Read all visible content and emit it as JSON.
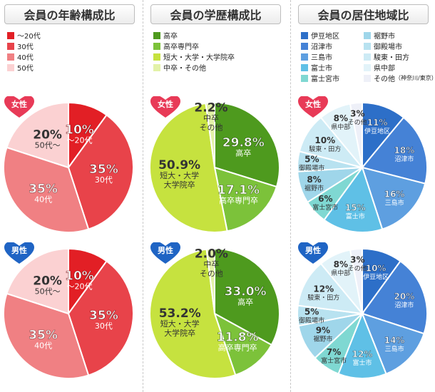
{
  "chart_data": [
    {
      "type": "pie",
      "title": "会員の年齢構成比",
      "legend": [
        {
          "label": "～20代",
          "color": "#e21f25"
        },
        {
          "label": "30代",
          "color": "#e8434a"
        },
        {
          "label": "40代",
          "color": "#f08083"
        },
        {
          "label": "50代",
          "color": "#fbd1d2"
        }
      ],
      "groups": [
        {
          "heart_label": "女性",
          "heart_color": "#e83a57",
          "slices": [
            {
              "value": 10,
              "label_pct": "10%",
              "label": "～20代",
              "color": "#e21f25"
            },
            {
              "value": 35,
              "label_pct": "35%",
              "label": "30代",
              "color": "#e8434a"
            },
            {
              "value": 35,
              "label_pct": "35%",
              "label": "40代",
              "color": "#f08083"
            },
            {
              "value": 20,
              "label_pct": "20%",
              "label": "50代～",
              "color": "#fbd1d2"
            }
          ]
        },
        {
          "heart_label": "男性",
          "heart_color": "#1f64c4",
          "slices": [
            {
              "value": 10,
              "label_pct": "10%",
              "label": "～20代",
              "color": "#e21f25"
            },
            {
              "value": 35,
              "label_pct": "35%",
              "label": "30代",
              "color": "#e8434a"
            },
            {
              "value": 35,
              "label_pct": "35%",
              "label": "40代",
              "color": "#f08083"
            },
            {
              "value": 20,
              "label_pct": "20%",
              "label": "50代～",
              "color": "#fbd1d2"
            }
          ]
        }
      ]
    },
    {
      "type": "pie",
      "title": "会員の学歴構成比",
      "legend": [
        {
          "label": "高卒",
          "color": "#4e9a1e"
        },
        {
          "label": "高卒専門卒",
          "color": "#7cc23a"
        },
        {
          "label": "短大・大学・大学院卒",
          "color": "#c6e23f"
        },
        {
          "label": "中卒・その他",
          "color": "#e3f2a8"
        }
      ],
      "groups": [
        {
          "heart_label": "女性",
          "heart_color": "#e83a57",
          "slices": [
            {
              "value": 29.8,
              "label_pct": "29.8%",
              "label": "高卒",
              "color": "#4e9a1e"
            },
            {
              "value": 17.1,
              "label_pct": "17.1%",
              "label": "高卒専門卒",
              "color": "#7cc23a"
            },
            {
              "value": 50.9,
              "label_pct": "50.9%",
              "label": "短大・大学|大学院卒",
              "color": "#c6e23f"
            },
            {
              "value": 2.2,
              "label_pct": "2.2%",
              "label": "中卒|その他",
              "color": "#e3f2a8"
            }
          ]
        },
        {
          "heart_label": "男性",
          "heart_color": "#1f64c4",
          "slices": [
            {
              "value": 33.0,
              "label_pct": "33.0%",
              "label": "高卒",
              "color": "#4e9a1e"
            },
            {
              "value": 11.8,
              "label_pct": "11.8%",
              "label": "高卒専門卒",
              "color": "#7cc23a"
            },
            {
              "value": 53.2,
              "label_pct": "53.2%",
              "label": "短大・大学|大学院卒",
              "color": "#c6e23f"
            },
            {
              "value": 2.0,
              "label_pct": "2.0%",
              "label": "中卒|その他",
              "color": "#e3f2a8"
            }
          ]
        }
      ]
    },
    {
      "type": "pie",
      "title": "会員の居住地域比",
      "legend": [
        {
          "label": "伊豆地区",
          "color": "#2d6fc8"
        },
        {
          "label": "裾野市",
          "color": "#9fd6ea"
        },
        {
          "label": "沼津市",
          "color": "#4582d6"
        },
        {
          "label": "御殿場市",
          "color": "#b8e2f0"
        },
        {
          "label": "三島市",
          "color": "#5e9fe0"
        },
        {
          "label": "駿東・田方",
          "color": "#cdebf5"
        },
        {
          "label": "富士市",
          "color": "#5fc0e6"
        },
        {
          "label": "県中部",
          "color": "#e2f3f9"
        },
        {
          "label": "富士宮市",
          "color": "#7fd8d2"
        },
        {
          "label": "その他",
          "note": "（神奈川/東京）",
          "color": "#eef0f8"
        }
      ],
      "groups": [
        {
          "heart_label": "女性",
          "heart_color": "#e83a57",
          "slices": [
            {
              "value": 11,
              "label_pct": "11%",
              "label": "伊豆地区",
              "color": "#2d6fc8"
            },
            {
              "value": 18,
              "label_pct": "18%",
              "label": "沼津市",
              "color": "#4582d6"
            },
            {
              "value": 16,
              "label_pct": "16%",
              "label": "三島市",
              "color": "#5e9fe0"
            },
            {
              "value": 15,
              "label_pct": "15%",
              "label": "富士市",
              "color": "#5fc0e6"
            },
            {
              "value": 6,
              "label_pct": "6%",
              "label": "富士宮市",
              "color": "#7fd8d2"
            },
            {
              "value": 8,
              "label_pct": "8%",
              "label": "裾野市",
              "color": "#9fd6ea"
            },
            {
              "value": 5,
              "label_pct": "5%",
              "label": "御殿場市",
              "color": "#b8e2f0"
            },
            {
              "value": 10,
              "label_pct": "10%",
              "label": "駿東・田方",
              "color": "#cdebf5"
            },
            {
              "value": 8,
              "label_pct": "8%",
              "label": "県中部",
              "color": "#e2f3f9"
            },
            {
              "value": 3,
              "label_pct": "3%",
              "label": "その他",
              "color": "#eef0f8"
            }
          ]
        },
        {
          "heart_label": "男性",
          "heart_color": "#1f64c4",
          "slices": [
            {
              "value": 10,
              "label_pct": "10%",
              "label": "伊豆地区",
              "color": "#2d6fc8"
            },
            {
              "value": 20,
              "label_pct": "20%",
              "label": "沼津市",
              "color": "#4582d6"
            },
            {
              "value": 14,
              "label_pct": "14%",
              "label": "三島市",
              "color": "#5e9fe0"
            },
            {
              "value": 12,
              "label_pct": "12%",
              "label": "富士市",
              "color": "#5fc0e6"
            },
            {
              "value": 7,
              "label_pct": "7%",
              "label": "富士宮市",
              "color": "#7fd8d2"
            },
            {
              "value": 9,
              "label_pct": "9%",
              "label": "裾野市",
              "color": "#9fd6ea"
            },
            {
              "value": 5,
              "label_pct": "5%",
              "label": "御殿場市",
              "color": "#b8e2f0"
            },
            {
              "value": 12,
              "label_pct": "12%",
              "label": "駿東・田方",
              "color": "#cdebf5"
            },
            {
              "value": 8,
              "label_pct": "8%",
              "label": "県中部",
              "color": "#e2f3f9"
            },
            {
              "value": 3,
              "label_pct": "3%",
              "label": "その他",
              "color": "#eef0f8"
            }
          ]
        }
      ]
    }
  ]
}
